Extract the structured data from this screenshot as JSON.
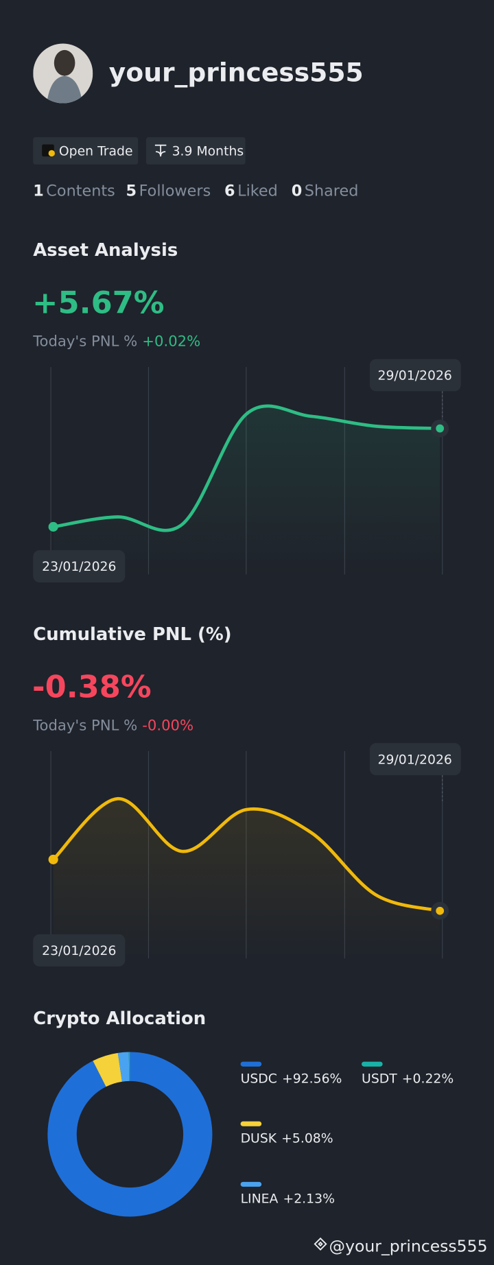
{
  "profile": {
    "username": "your_princess555",
    "badges": [
      "Open Trade",
      "3.9 Months"
    ],
    "stats": [
      {
        "count": "1",
        "label": "Contents"
      },
      {
        "count": "5",
        "label": "Followers"
      },
      {
        "count": "6",
        "label": "Liked"
      },
      {
        "count": "0",
        "label": "Shared"
      }
    ]
  },
  "chart_data": [
    {
      "type": "line",
      "title": "Asset Analysis",
      "headline": "+5.67%",
      "subtitle": "Today's PNL %",
      "change": "+0.02%",
      "categories": [
        "23/01/2026",
        null,
        null,
        null,
        null,
        null,
        "29/01/2026"
      ],
      "values": [
        0,
        0.57,
        0.14,
        6.51,
        6.37,
        5.8,
        5.67
      ],
      "color": "#2ebd85"
    },
    {
      "type": "line",
      "title": "Cumulative PNL (%)",
      "headline": "-0.38%",
      "subtitle": "Today's PNL %",
      "change": "-0.00%",
      "categories": [
        "23/01/2026",
        null,
        null,
        null,
        null,
        null,
        "29/01/2026"
      ],
      "values": [
        0,
        0.45,
        0.06,
        0.37,
        0.2,
        -0.26,
        -0.38
      ],
      "color": "#f0b90b",
      "headline_color": "#f6465d"
    },
    {
      "type": "pie",
      "title": "Crypto Allocation",
      "categories": [
        "USDC",
        "DUSK",
        "LINEA",
        "USDT"
      ],
      "values": [
        92.56,
        5.08,
        2.13,
        0.22
      ],
      "value_labels": [
        "+92.56%",
        "+5.08%",
        "+2.13%",
        "+0.22%"
      ],
      "colors": [
        "#1f6fd8",
        "#f5d13a",
        "#4aa3f0",
        "#18b3a8"
      ]
    }
  ],
  "footer": "@your_princess555"
}
